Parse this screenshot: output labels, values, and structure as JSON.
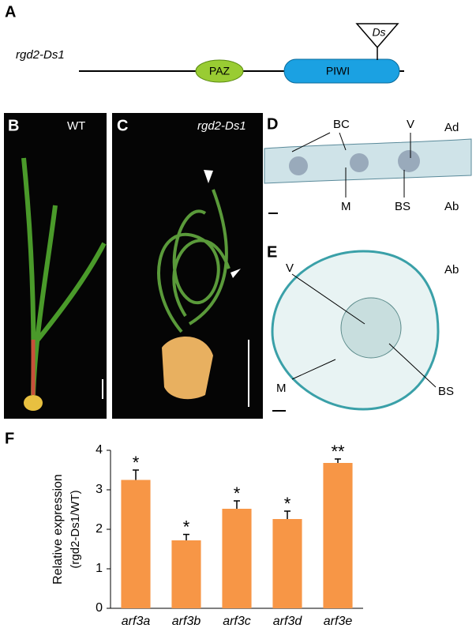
{
  "panel_a": {
    "label": "A",
    "gene": "rgd2-Ds1",
    "insert": "Ds",
    "domains": [
      "PAZ",
      "PIWI"
    ]
  },
  "panel_b": {
    "label": "B",
    "caption": "WT"
  },
  "panel_c": {
    "label": "C",
    "caption": "rgd2-Ds1"
  },
  "panel_d": {
    "label": "D",
    "annotations": [
      "BC",
      "V",
      "Ad",
      "M",
      "BS",
      "Ab"
    ]
  },
  "panel_e": {
    "label": "E",
    "annotations": [
      "V",
      "Ab",
      "M",
      "BS"
    ]
  },
  "chart_data": {
    "type": "bar",
    "panel_label": "F",
    "y_label": "Relative expression",
    "y_label_sub": "(rgd2-Ds1/WT)",
    "categories": [
      "arf3a",
      "arf3b",
      "arf3c",
      "arf3d",
      "arf3e"
    ],
    "values": [
      3.25,
      1.72,
      2.52,
      2.26,
      3.68
    ],
    "errors": [
      0.25,
      0.15,
      0.2,
      0.2,
      0.1
    ],
    "significance": [
      "*",
      "*",
      "*",
      "*",
      "**"
    ],
    "color": "#f79646",
    "ylim": [
      0,
      4
    ],
    "yticks": [
      0,
      1,
      2,
      3,
      4
    ]
  }
}
